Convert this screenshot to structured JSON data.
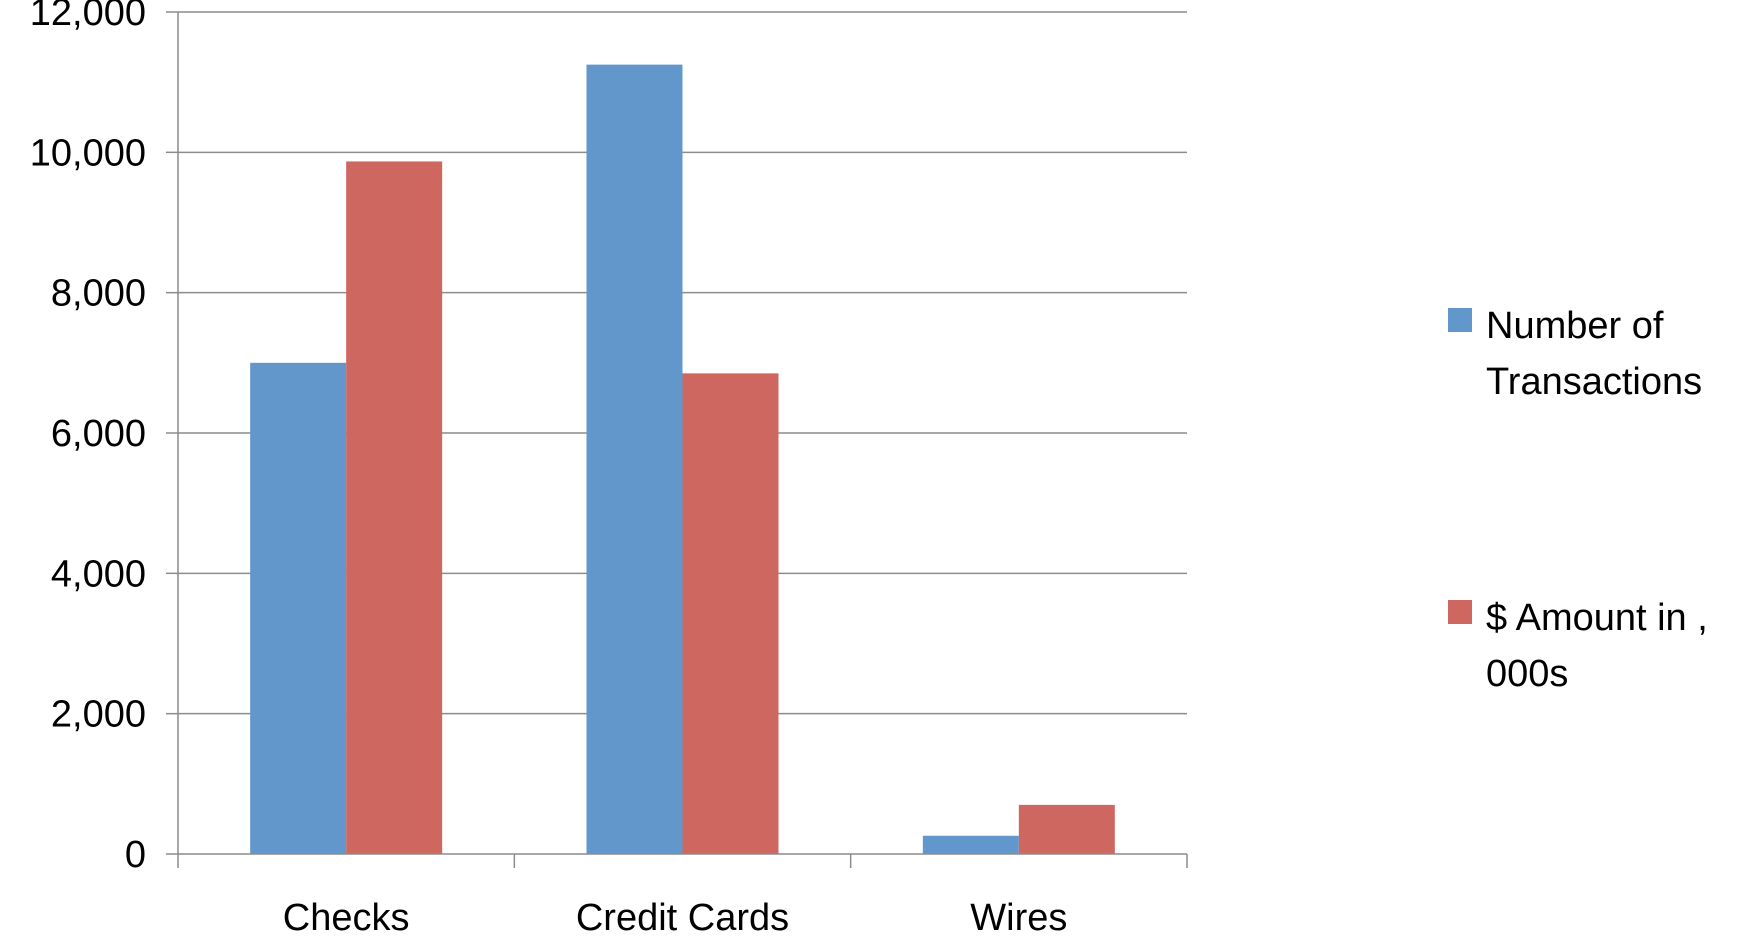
{
  "chart_data": {
    "type": "bar",
    "title": "",
    "xlabel": "",
    "ylabel": "",
    "categories": [
      "Checks",
      "Credit Cards",
      "Wires"
    ],
    "series": [
      {
        "name": "Number of Transactions",
        "color": "#6197CB",
        "values": [
          7000,
          11250,
          260
        ]
      },
      {
        "name": "$ Amount in ,000s",
        "color": "#CD6760",
        "values": [
          9870,
          6850,
          700
        ]
      }
    ],
    "ylim": [
      0,
      12000
    ],
    "yticks": [
      "0",
      "2,000",
      "4,000",
      "6,000",
      "8,000",
      "10,000",
      "12,000"
    ],
    "ytick_values": [
      0,
      2000,
      4000,
      6000,
      8000,
      10000,
      12000
    ],
    "grid": true,
    "legend_position": "right",
    "legend_lines": [
      [
        "Number of",
        "Transactions"
      ],
      [
        "$ Amount in ,",
        "000s"
      ]
    ]
  }
}
